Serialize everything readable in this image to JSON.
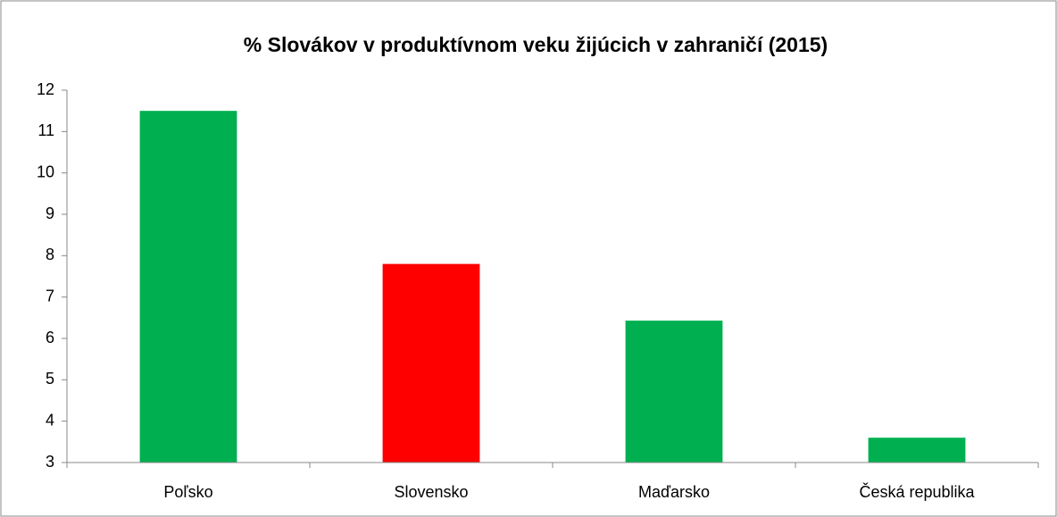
{
  "chart_data": {
    "type": "bar",
    "title": "% Slovákov v produktívnom veku žijúcich v zahraničí (2015)",
    "categories": [
      "Poľsko",
      "Slovensko",
      "Maďarsko",
      "Česká republika"
    ],
    "values": [
      11.5,
      7.8,
      6.43,
      3.6
    ],
    "colors": [
      "#00b050",
      "#ff0000",
      "#00b050",
      "#00b050"
    ],
    "ylim": [
      3,
      12
    ],
    "yticks": [
      3,
      4,
      5,
      6,
      7,
      8,
      9,
      10,
      11,
      12
    ],
    "grid": false
  }
}
